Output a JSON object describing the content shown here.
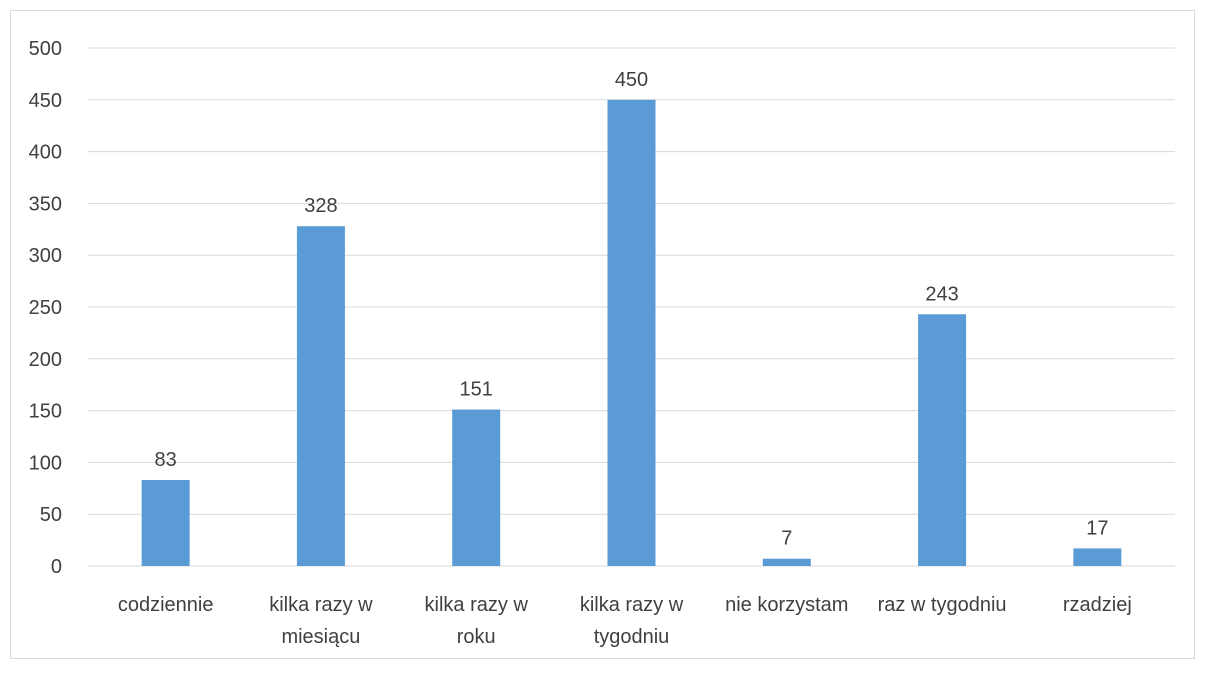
{
  "chart_data": {
    "type": "bar",
    "categories": [
      "codziennie",
      "kilka razy w miesiącu",
      "kilka razy w roku",
      "kilka razy w tygodniu",
      "nie korzystam",
      "raz w tygodniu",
      "rzadziej"
    ],
    "values": [
      83,
      328,
      151,
      450,
      7,
      243,
      17
    ],
    "color": "#5b9bd5",
    "ylim": [
      0,
      500
    ],
    "yticks": [
      0,
      50,
      100,
      150,
      200,
      250,
      300,
      350,
      400,
      450,
      500
    ],
    "grid": true
  }
}
